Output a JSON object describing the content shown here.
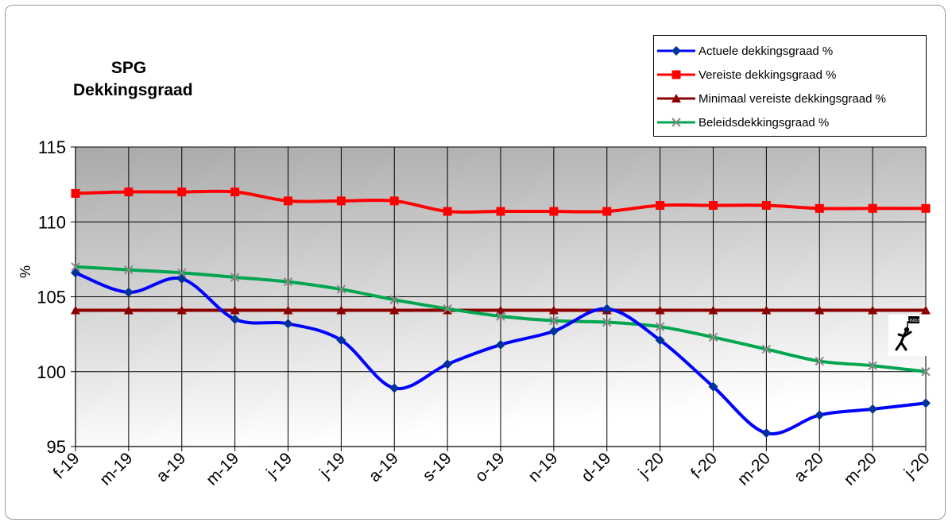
{
  "chart_data": {
    "type": "line",
    "title": [
      "SPG",
      "Dekkingsgraad"
    ],
    "ylabel": "%",
    "xlabel": "",
    "ylim": [
      95,
      115
    ],
    "yticks": [
      95,
      100,
      105,
      110,
      115
    ],
    "grid": true,
    "legend_position": "top-right",
    "categories": [
      "f-19",
      "m-19",
      "a-19",
      "m-19",
      "j-19",
      "j-19",
      "a-19",
      "s-19",
      "o-19",
      "n-19",
      "d-19",
      "j-20",
      "f-20",
      "m-20",
      "a-20",
      "m-20",
      "j-20"
    ],
    "series": [
      {
        "name": "Actuele dekkingsgraad %",
        "color": "#0000FF",
        "marker": "diamond",
        "smooth": true,
        "values": [
          106.6,
          105.3,
          106.2,
          103.5,
          103.2,
          102.1,
          98.9,
          100.5,
          101.8,
          102.7,
          104.2,
          102.1,
          99.0,
          95.9,
          97.1,
          97.5,
          97.9
        ]
      },
      {
        "name": "Vereiste dekkingsgraad %",
        "color": "#FF0000",
        "marker": "square",
        "smooth": true,
        "values": [
          111.9,
          112.0,
          112.0,
          112.0,
          111.4,
          111.4,
          111.4,
          110.7,
          110.7,
          110.7,
          110.7,
          111.1,
          111.1,
          111.1,
          110.9,
          110.9,
          110.9
        ]
      },
      {
        "name": "Minimaal vereiste dekkingsgraad %",
        "color": "#8B0000",
        "marker": "triangle",
        "smooth": false,
        "values": [
          104.1,
          104.1,
          104.1,
          104.1,
          104.1,
          104.1,
          104.1,
          104.1,
          104.1,
          104.1,
          104.1,
          104.1,
          104.1,
          104.1,
          104.1,
          104.1,
          104.1
        ]
      },
      {
        "name": "Beleidsdekkingsgraad %",
        "color": "#00A550",
        "marker": "x",
        "smooth": true,
        "values": [
          107.0,
          106.8,
          106.6,
          106.3,
          106.0,
          105.5,
          104.8,
          104.2,
          103.7,
          103.4,
          103.3,
          103.0,
          102.3,
          101.5,
          100.7,
          100.4,
          100.0
        ]
      }
    ],
    "annotation_icon": "finish-runner-icon",
    "annotation_icon_text": "FINISH"
  }
}
